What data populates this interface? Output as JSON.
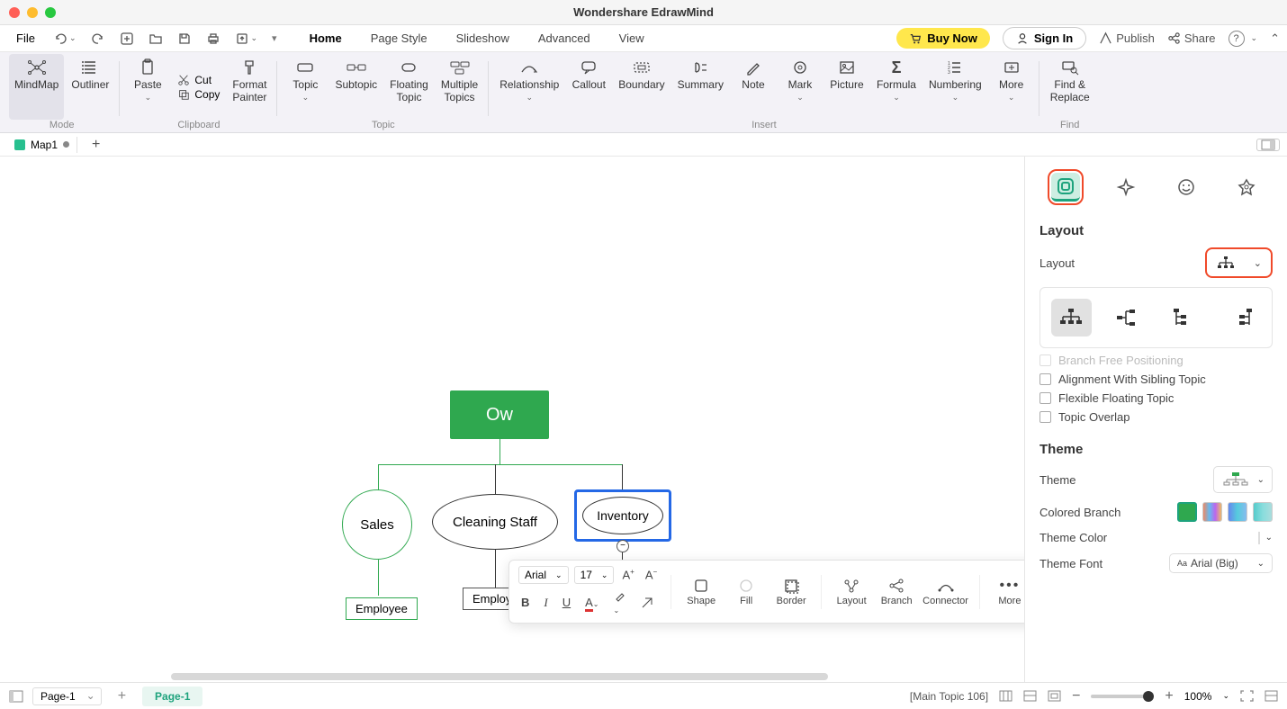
{
  "app": {
    "title": "Wondershare EdrawMind"
  },
  "menubar": {
    "file": "File",
    "tabs": [
      "Home",
      "Page Style",
      "Slideshow",
      "Advanced",
      "View"
    ],
    "active_tab": "Home",
    "buy_now": "Buy Now",
    "sign_in": "Sign In",
    "publish": "Publish",
    "share": "Share"
  },
  "ribbon": {
    "mode_group": {
      "mindmap": "MindMap",
      "outliner": "Outliner",
      "label": "Mode"
    },
    "clipboard_group": {
      "paste": "Paste",
      "cut": "Cut",
      "copy": "Copy",
      "format_painter": "Format\nPainter",
      "label": "Clipboard"
    },
    "topic_group": {
      "topic": "Topic",
      "subtopic": "Subtopic",
      "floating": "Floating\nTopic",
      "multiple": "Multiple\nTopics",
      "label": "Topic"
    },
    "insert_group": {
      "relationship": "Relationship",
      "callout": "Callout",
      "boundary": "Boundary",
      "summary": "Summary",
      "note": "Note",
      "mark": "Mark",
      "picture": "Picture",
      "formula": "Formula",
      "numbering": "Numbering",
      "more": "More",
      "label": "Insert"
    },
    "find_group": {
      "find_replace": "Find &\nReplace",
      "label": "Find"
    }
  },
  "doctab": {
    "name": "Map1"
  },
  "canvas": {
    "owner": "Ow",
    "sales": "Sales",
    "cleaning": "Cleaning Staff",
    "inventory": "Inventory",
    "employee": "Employee",
    "colors": {
      "owner_bg": "#2fa84f",
      "selection": "#2468e6",
      "line_green": "#2fa84f",
      "line_black": "#333333"
    }
  },
  "float_toolbar": {
    "font": "Arial",
    "size": "17",
    "shape": "Shape",
    "fill": "Fill",
    "border": "Border",
    "layout": "Layout",
    "branch": "Branch",
    "connector": "Connector",
    "more": "More"
  },
  "sidepanel": {
    "layout_title": "Layout",
    "layout_label": "Layout",
    "branch_free": "Branch Free Positioning",
    "align_sibling": "Alignment With Sibling Topic",
    "flex_floating": "Flexible Floating Topic",
    "topic_overlap": "Topic Overlap",
    "theme_title": "Theme",
    "theme_label": "Theme",
    "colored_branch": "Colored Branch",
    "theme_color": "Theme Color",
    "theme_font": "Theme Font",
    "theme_font_value": "Arial (Big)",
    "theme_color_swatches": [
      "#6b8bd6",
      "#5770c7",
      "#e86b5c",
      "#e8925c",
      "#e8c55c",
      "#a7d66b",
      "#5cc98e",
      "#5cb8c9",
      "#5c8ec9",
      "#8b5cc9"
    ]
  },
  "statusbar": {
    "page_select": "Page-1",
    "page_active": "Page-1",
    "selection_info": "[Main Topic 106]",
    "zoom": "100%"
  }
}
